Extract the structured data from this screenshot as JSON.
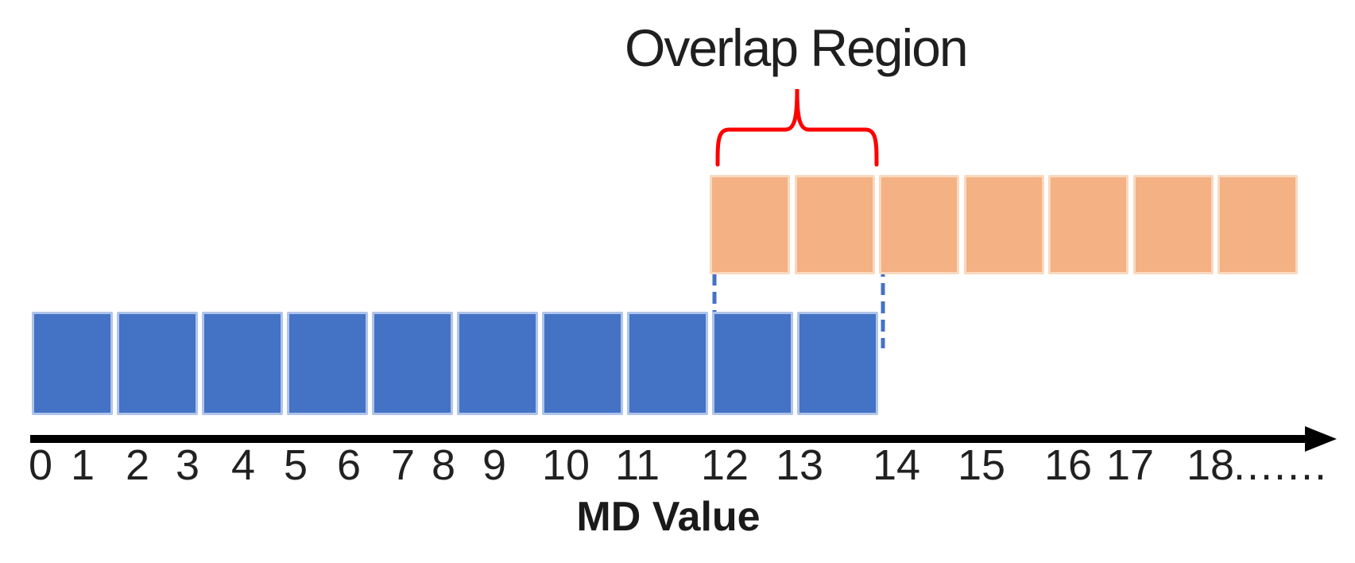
{
  "title": "Overlap Region",
  "axis": {
    "label": "MD Value",
    "ticks": [
      "0",
      "1",
      "2",
      "3",
      "4",
      "5",
      "6",
      "7",
      "8",
      "9",
      "10",
      "11",
      "12",
      "13",
      "14",
      "15",
      "16",
      "17",
      "18"
    ],
    "trailing_dots": "......."
  },
  "rows": {
    "orange": {
      "count": 7,
      "fill": "#F4B183",
      "edge": "#F9D9BF"
    },
    "blue": {
      "count": 10,
      "fill": "#4472C4",
      "edge": "#AFC4EA"
    }
  },
  "annotations": {
    "brace_color": "#FF0000",
    "dash_color": "#4472C4",
    "axis_color": "#000000"
  }
}
